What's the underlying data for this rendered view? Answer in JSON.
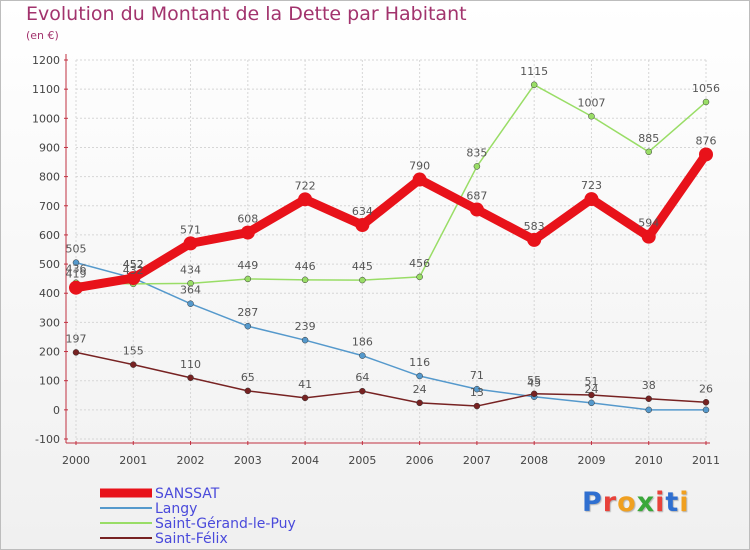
{
  "header": {
    "title": "Evolution du Montant de la Dette par Habitant",
    "subtitle": "(en €)"
  },
  "logo": {
    "text": "Proxiti",
    "colors": [
      "#2f6fd0",
      "#e8423a",
      "#f0a020",
      "#3aa83a",
      "#e8423a",
      "#2f6fd0",
      "#f0a020"
    ]
  },
  "chart_data": {
    "type": "line",
    "categories": [
      "2000",
      "2001",
      "2002",
      "2003",
      "2004",
      "2005",
      "2006",
      "2007",
      "2008",
      "2009",
      "2010",
      "2011"
    ],
    "ylim": [
      -100,
      1200
    ],
    "yticks": [
      "-100",
      "0",
      "100",
      "200",
      "300",
      "400",
      "500",
      "600",
      "700",
      "800",
      "900",
      "1000",
      "1100",
      "1200"
    ],
    "grid": true,
    "legend_position": "bottom-left",
    "series": [
      {
        "name": "SANSSAT",
        "color": "#e8121a",
        "width": 9,
        "values": [
          419,
          452,
          571,
          608,
          722,
          634,
          790,
          687,
          583,
          723,
          594,
          876
        ],
        "labels": [
          "419",
          "452",
          "571",
          "608",
          "722",
          "634",
          "790",
          "687",
          "583",
          "723",
          "594",
          "876"
        ]
      },
      {
        "name": "Langy",
        "color": "#5599cc",
        "width": 1.5,
        "values": [
          505,
          452,
          364,
          287,
          239,
          186,
          116,
          71,
          45,
          24,
          0,
          0
        ],
        "labels": [
          "505",
          "452",
          "364",
          "287",
          "239",
          "186",
          "116",
          "71",
          "45",
          "24",
          "",
          ""
        ]
      },
      {
        "name": "Saint-Gérand-le-Puy",
        "color": "#99dd66",
        "width": 1.5,
        "values": [
          436,
          432,
          434,
          449,
          446,
          445,
          456,
          835,
          1115,
          1007,
          885,
          1056
        ],
        "labels": [
          "436",
          "432",
          "434",
          "449",
          "446",
          "445",
          "456",
          "835",
          "1115",
          "1007",
          "885",
          "1056"
        ]
      },
      {
        "name": "Saint-Félix",
        "color": "#772222",
        "width": 1.5,
        "values": [
          197,
          155,
          110,
          65,
          41,
          64,
          24,
          13,
          55,
          51,
          38,
          26
        ],
        "labels": [
          "197",
          "155",
          "110",
          "65",
          "41",
          "64",
          "24",
          "13",
          "55",
          "51",
          "38",
          "26"
        ]
      }
    ]
  }
}
